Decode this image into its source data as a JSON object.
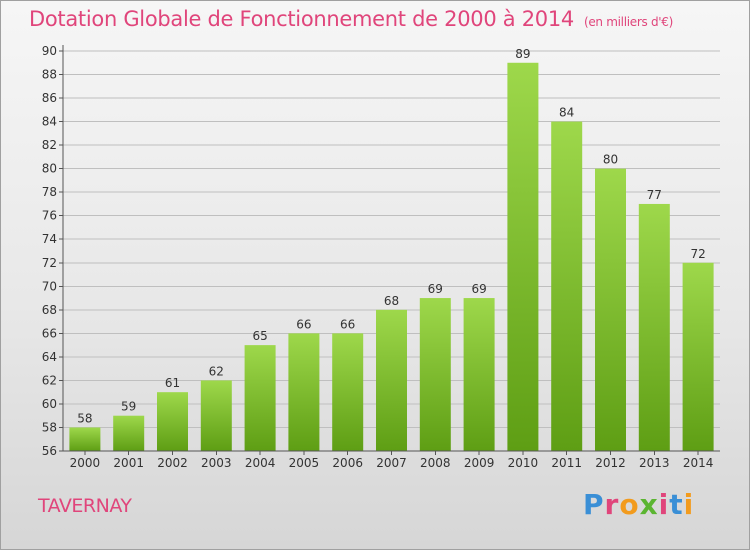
{
  "header": {
    "title": "Dotation Globale de Fonctionnement de 2000 à 2014",
    "unit_note": "(en milliers d'€)"
  },
  "footer": {
    "place": "TAVERNAY",
    "brand": "Proxiti",
    "brand_colors": [
      "#3a8fd6",
      "#e0457b",
      "#f29b1d",
      "#5bb531",
      "#e0457b",
      "#3a8fd6",
      "#f29b1d"
    ]
  },
  "colors": {
    "title": "#e0457b",
    "bar_top": "#9ed84b",
    "bar_bottom": "#5e9e14",
    "grid": "#bfbfbf",
    "axis_text": "#333333"
  },
  "chart_data": {
    "type": "bar",
    "categories": [
      "2000",
      "2001",
      "2002",
      "2003",
      "2004",
      "2005",
      "2006",
      "2007",
      "2008",
      "2009",
      "2010",
      "2011",
      "2012",
      "2013",
      "2014"
    ],
    "values": [
      58,
      59,
      61,
      62,
      65,
      66,
      66,
      68,
      69,
      69,
      89,
      84,
      80,
      77,
      72
    ],
    "ylim": [
      56,
      90
    ],
    "ytick_step": 2,
    "grid": true,
    "data_labels": true
  }
}
